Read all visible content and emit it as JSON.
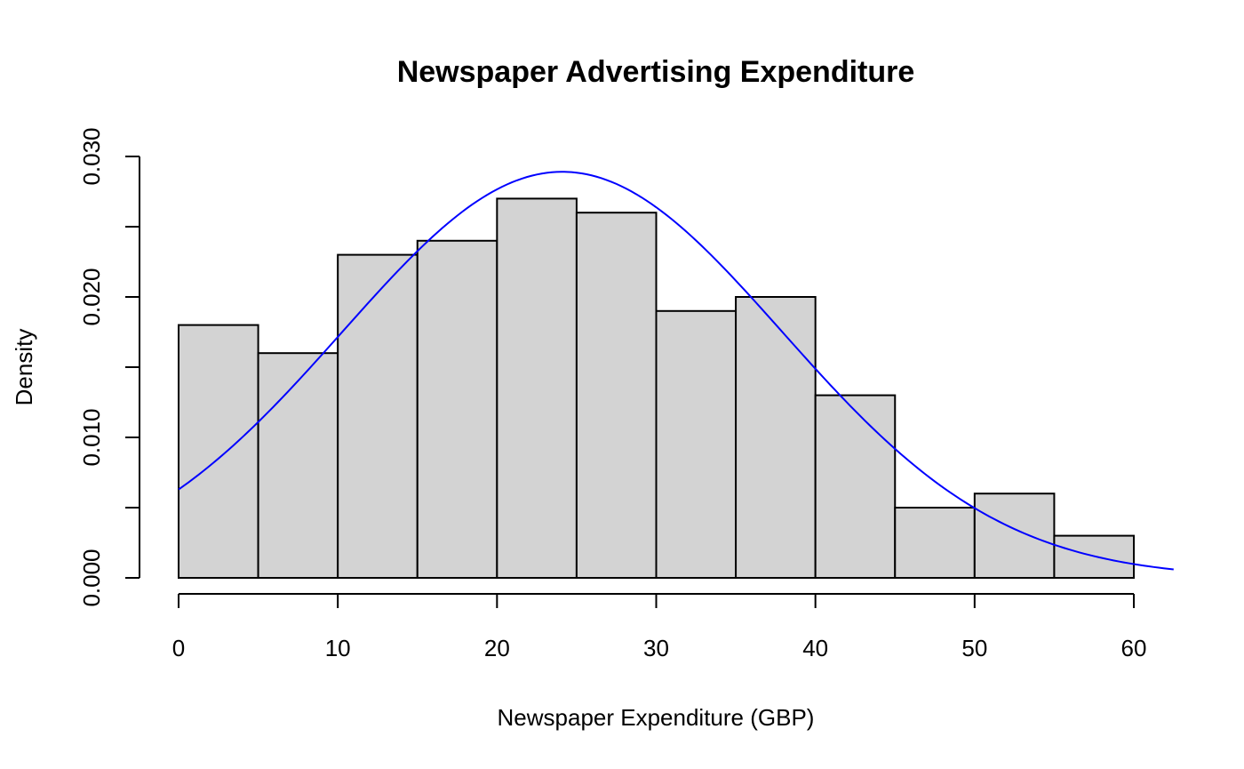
{
  "chart_data": {
    "type": "bar",
    "title": "Newspaper Advertising Expenditure",
    "xlabel": "Newspaper Expenditure (GBP)",
    "ylabel": "Density",
    "xlim": [
      0,
      60
    ],
    "ylim": [
      0,
      0.03
    ],
    "x_ticks": [
      0,
      10,
      20,
      30,
      40,
      50,
      60
    ],
    "x_tick_labels": [
      "0",
      "10",
      "20",
      "30",
      "40",
      "50",
      "60"
    ],
    "y_ticks": [
      0,
      0.005,
      0.01,
      0.015,
      0.02,
      0.025,
      0.03
    ],
    "y_tick_labels": [
      "0.000",
      "0.010",
      "0.020",
      "0.030"
    ],
    "y_labeled_ticks": [
      0,
      0.01,
      0.02,
      0.03
    ],
    "bins": [
      {
        "start": 0,
        "end": 5,
        "density": 0.018
      },
      {
        "start": 5,
        "end": 10,
        "density": 0.016
      },
      {
        "start": 10,
        "end": 15,
        "density": 0.023
      },
      {
        "start": 15,
        "end": 20,
        "density": 0.024
      },
      {
        "start": 20,
        "end": 25,
        "density": 0.027
      },
      {
        "start": 25,
        "end": 30,
        "density": 0.026
      },
      {
        "start": 30,
        "end": 35,
        "density": 0.019
      },
      {
        "start": 35,
        "end": 40,
        "density": 0.02
      },
      {
        "start": 40,
        "end": 45,
        "density": 0.013
      },
      {
        "start": 45,
        "end": 50,
        "density": 0.005
      },
      {
        "start": 50,
        "end": 55,
        "density": 0.006
      },
      {
        "start": 55,
        "end": 60,
        "density": 0.003
      }
    ],
    "density_curve": {
      "type": "normal",
      "mean": 24.1,
      "sd": 13.8,
      "x_range": [
        0,
        62.5
      ]
    },
    "bar_color": "#d3d3d3",
    "curve_color": "#0000ff",
    "grid": false,
    "legend": "none"
  }
}
